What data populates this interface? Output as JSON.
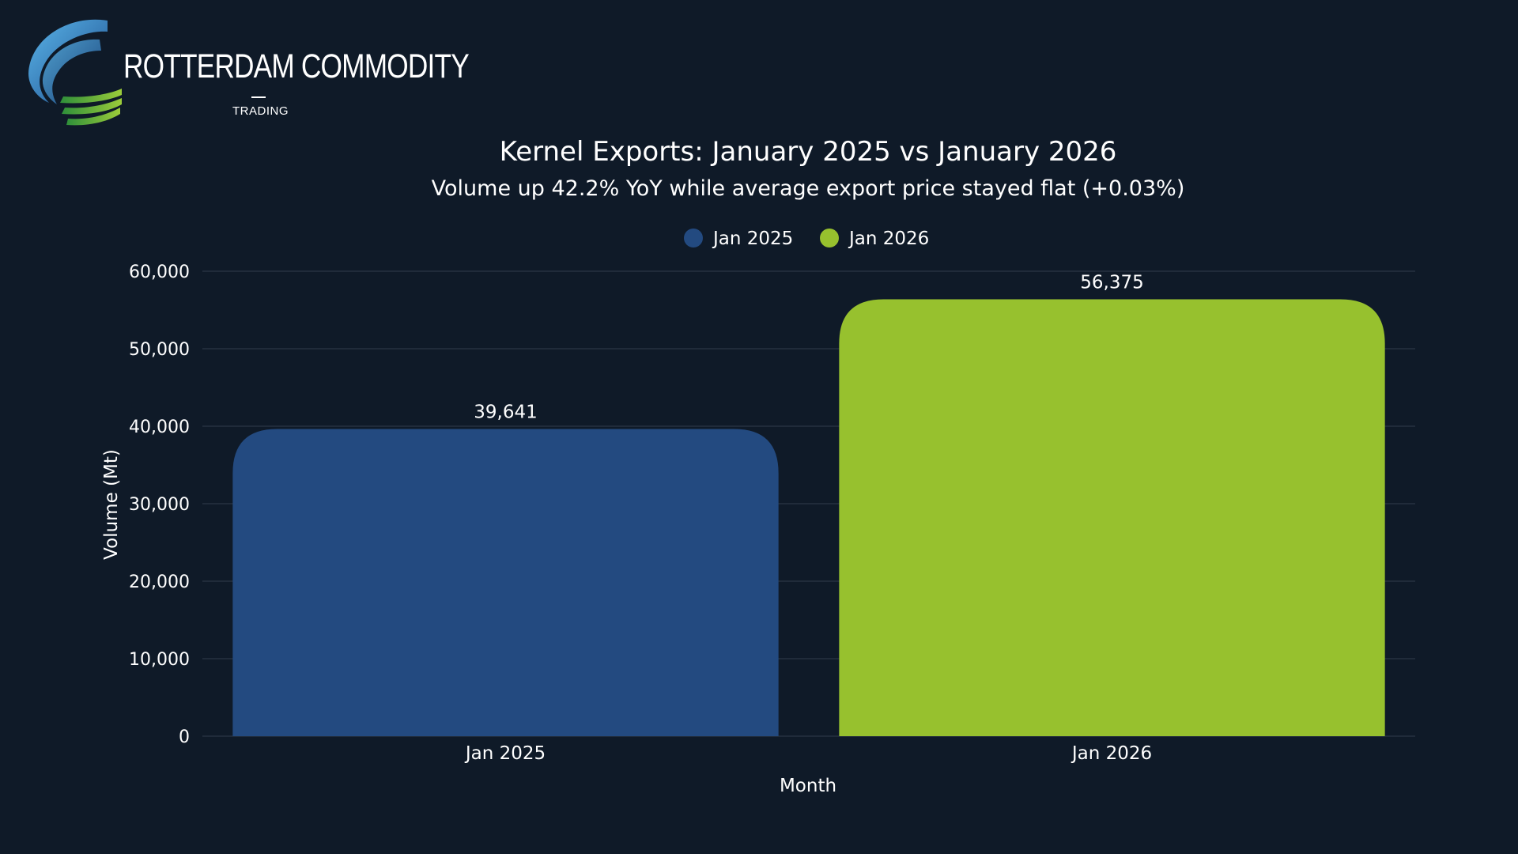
{
  "brand": {
    "name": "ROTTERDAM COMMODITY",
    "tagline": "TRADING"
  },
  "colors": {
    "background": "#0f1a28",
    "jan_2025": "#234a80",
    "jan_2026": "#97c12e",
    "grid": "#2a3646",
    "text": "#ffffff"
  },
  "chart_data": {
    "type": "bar",
    "title": "Kernel Exports: January 2025 vs January 2026",
    "subtitle": "Volume up 42.2% YoY while average export price stayed flat (+0.03%)",
    "xlabel": "Month",
    "ylabel": "Volume (Mt)",
    "categories": [
      "Jan 2025",
      "Jan 2026"
    ],
    "values": [
      39641,
      56375
    ],
    "value_labels": [
      "39,641",
      "56,375"
    ],
    "legend": [
      {
        "label": "Jan 2025",
        "color": "#234a80"
      },
      {
        "label": "Jan 2026",
        "color": "#97c12e"
      }
    ],
    "legend_position": "top-center",
    "ylim": [
      0,
      60000
    ],
    "yticks": [
      0,
      10000,
      20000,
      30000,
      40000,
      50000,
      60000
    ],
    "ytick_labels": [
      "0",
      "10,000",
      "20,000",
      "30,000",
      "40,000",
      "50,000",
      "60,000"
    ],
    "grid": true
  }
}
